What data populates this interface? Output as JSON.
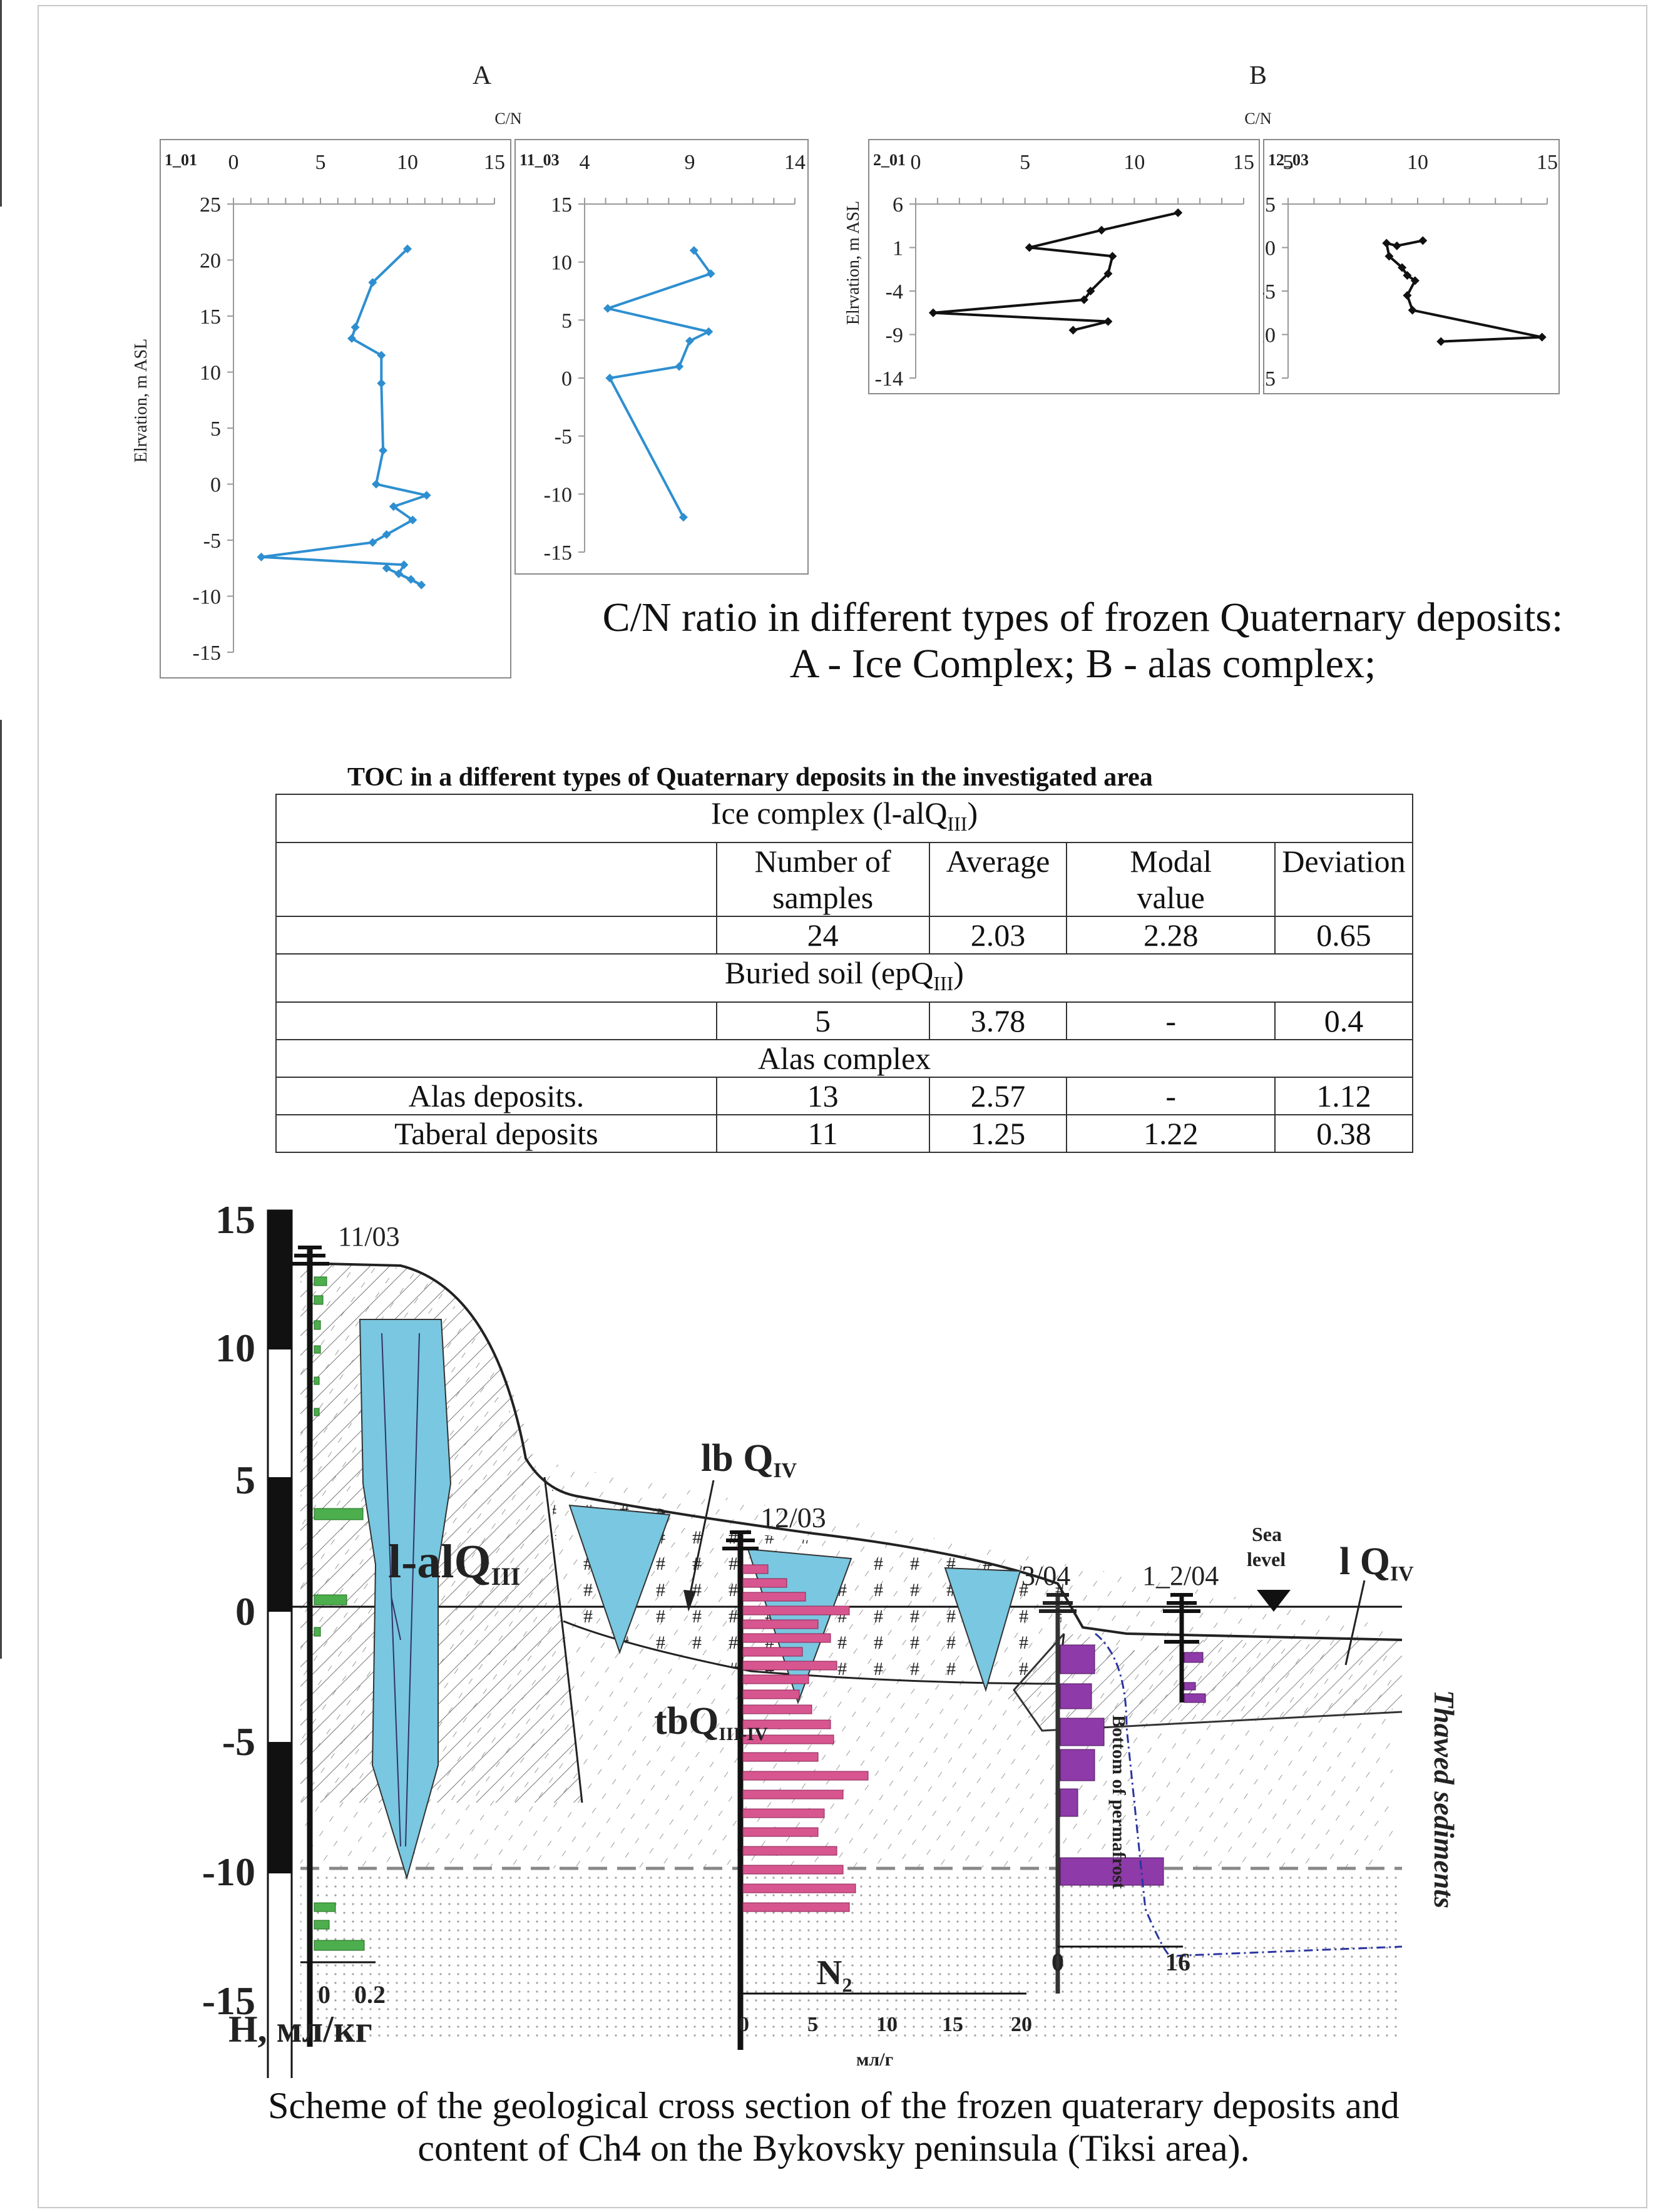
{
  "panels": {
    "A": "A",
    "B": "B",
    "cn_axis": "C/N",
    "y_label": "Elrvation, m ASL"
  },
  "chart_data": [
    {
      "type": "line",
      "name": "1_01",
      "xlim": [
        0,
        15
      ],
      "ylim": [
        -15,
        25
      ],
      "x_ticks": [
        "0",
        "5",
        "10",
        "15"
      ],
      "y_ticks": [
        "25",
        "20",
        "15",
        "10",
        "5",
        "0",
        "-5",
        "-10",
        "-15"
      ],
      "points": [
        [
          10,
          21
        ],
        [
          8,
          18
        ],
        [
          7,
          14
        ],
        [
          6.8,
          13
        ],
        [
          8.5,
          11.5
        ],
        [
          8.5,
          9
        ],
        [
          8.6,
          3
        ],
        [
          8.2,
          0
        ],
        [
          11.1,
          -1
        ],
        [
          9.2,
          -2
        ],
        [
          10.3,
          -3.2
        ],
        [
          8.8,
          -4.5
        ],
        [
          8,
          -5.2
        ],
        [
          1.6,
          -6.5
        ],
        [
          9.8,
          -7.2
        ],
        [
          9.5,
          -8
        ],
        [
          10.8,
          -9
        ],
        [
          10.2,
          -8.5
        ],
        [
          8.8,
          -7.5
        ]
      ],
      "color": "#2e8fd0"
    },
    {
      "type": "line",
      "name": "11_03",
      "xlim": [
        4,
        14
      ],
      "ylim": [
        -15,
        15
      ],
      "x_ticks": [
        "4",
        "9",
        "14"
      ],
      "y_ticks": [
        "15",
        "10",
        "5",
        "0",
        "-5",
        "-10",
        "-15"
      ],
      "points": [
        [
          9.2,
          11
        ],
        [
          10,
          9
        ],
        [
          5.1,
          6
        ],
        [
          9.9,
          4
        ],
        [
          9,
          3.2
        ],
        [
          8.5,
          1
        ],
        [
          5.2,
          0
        ],
        [
          8.7,
          -12
        ]
      ],
      "color": "#2e8fd0"
    },
    {
      "type": "line",
      "name": "2_01",
      "xlim": [
        0,
        15
      ],
      "ylim": [
        -14,
        6
      ],
      "x_ticks": [
        "0",
        "5",
        "10",
        "15"
      ],
      "y_ticks": [
        "6",
        "1",
        "-4",
        "-9",
        "-14"
      ],
      "points": [
        [
          12,
          5
        ],
        [
          8.5,
          3
        ],
        [
          5.2,
          1
        ],
        [
          9,
          0
        ],
        [
          8.8,
          -2
        ],
        [
          8,
          -4
        ],
        [
          7.7,
          -5
        ],
        [
          0.8,
          -6.5
        ],
        [
          8.8,
          -7.5
        ],
        [
          7.2,
          -8.5
        ]
      ],
      "color": "#111111"
    },
    {
      "type": "line",
      "name": "12_03",
      "xlim": [
        5,
        15
      ],
      "ylim": [
        -15,
        5
      ],
      "x_ticks": [
        "5",
        "10",
        "15"
      ],
      "y_ticks": [
        "5",
        "0",
        "-5",
        "-10",
        "-15"
      ],
      "points": [
        [
          10.2,
          0.8
        ],
        [
          9.2,
          0.2
        ],
        [
          8.8,
          0.5
        ],
        [
          8.9,
          -1
        ],
        [
          9.4,
          -2.3
        ],
        [
          9.6,
          -3.2
        ],
        [
          9.9,
          -3.8
        ],
        [
          9.6,
          -5.5
        ],
        [
          9.8,
          -7.2
        ],
        [
          14.8,
          -10.3
        ],
        [
          10.9,
          -10.8
        ]
      ],
      "color": "#111111"
    }
  ],
  "caption1": {
    "line1": "C/N ratio in different types of frozen Quaternary deposits:",
    "line2": "A - Ice Complex; B - alas complex;"
  },
  "table": {
    "title": "TOC in a different types of Quaternary deposits in the investigated area",
    "ice_complex_a": "Ice complex (l-alQ",
    "ice_complex_sub": "III",
    "ice_complex_b": ")",
    "h_number1": "Number of",
    "h_number2": "samples",
    "h_average": "Average",
    "h_modal1": "Modal",
    "h_modal2": "value",
    "h_deviation": "Deviation",
    "r1": {
      "n": "24",
      "avg": "2.03",
      "modal": "2.28",
      "dev": "0.65"
    },
    "buried_a": "Buried soil (epQ",
    "buried_sub": "III",
    "buried_b": ")",
    "r2": {
      "n": "5",
      "avg": "3.78",
      "modal": "-",
      "dev": "0.4"
    },
    "alas_header": "Alas complex",
    "r3": {
      "label": "Alas deposits.",
      "n": "13",
      "avg": "2.57",
      "modal": "-",
      "dev": "1.12"
    },
    "r4": {
      "label": "Taberal deposits",
      "n": "11",
      "avg": "1.25",
      "modal": "1.22",
      "dev": "0.38"
    }
  },
  "section": {
    "scale": [
      "15",
      "10",
      "5",
      "0",
      "-5",
      "-10",
      "-15"
    ],
    "h_axis": "H, мл/кг",
    "h_ticks": [
      "0",
      "0.2"
    ],
    "bh1": "11/03",
    "bh2": "12/03",
    "bh3": "3/04",
    "bh4": "1_2/04",
    "lbl_lal": "l-alQ",
    "lbl_lal_sub": "III",
    "lbl_lb": "lb Q",
    "lbl_lb_sub": "IV",
    "lbl_tb": "tbQ",
    "lbl_tb_sub": "III-IV",
    "lbl_l": "l Q",
    "lbl_l_sub": "IV",
    "sea1": "Sea",
    "sea2": "level",
    "thawed": "Thawed sediments",
    "n_axis": "N",
    "n_sub": "2",
    "n_ticks": [
      "0",
      "5",
      "10",
      "15",
      "20"
    ],
    "n_unit": "мл/г",
    "ch4_ticks": [
      "0",
      "16"
    ],
    "bottom_permafrost": "Bottom of permafrost"
  },
  "caption2": {
    "line1": "Scheme of the geological cross section of the frozen quaterary deposits  and",
    "line2": "content of Ch4 on the Bykovsky peninsula (Tiksi area)."
  }
}
